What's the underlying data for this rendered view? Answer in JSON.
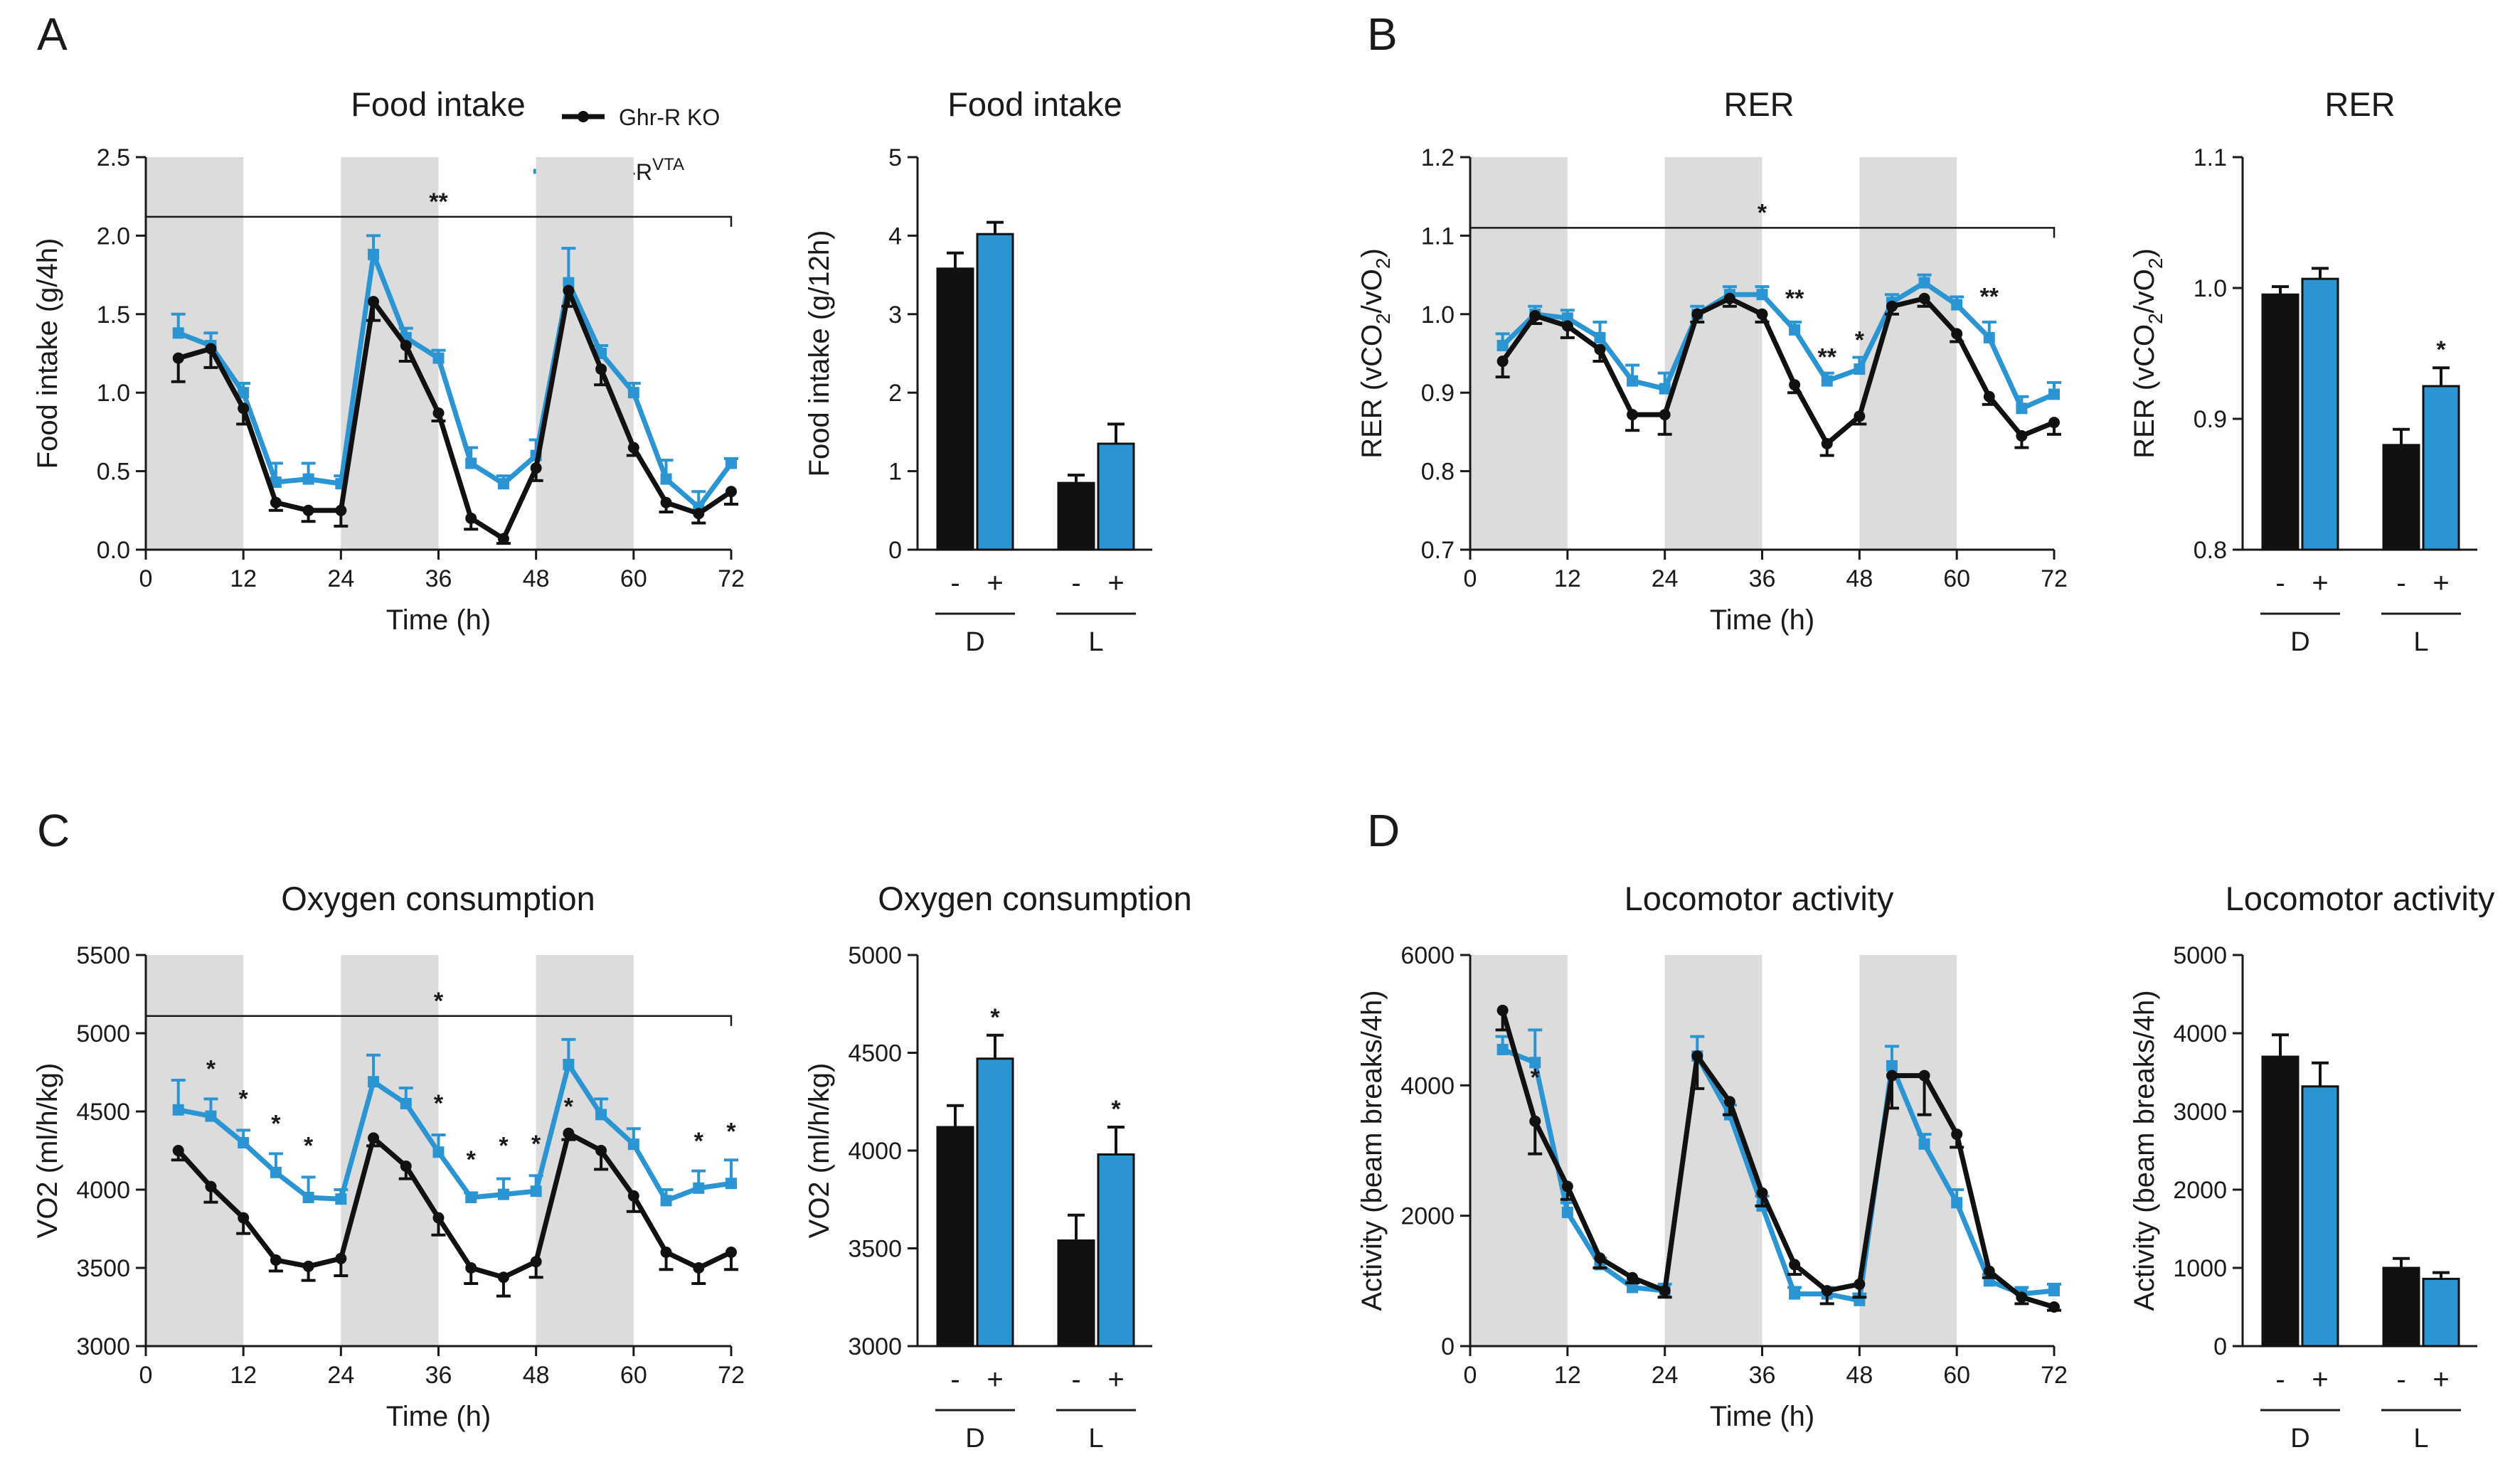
{
  "figure": {
    "panel_labels": [
      "A",
      "B",
      "C",
      "D"
    ]
  },
  "legend": {
    "ko": {
      "label": "Ghr-R KO",
      "color": "#111111"
    },
    "vta": {
      "label": "Ghr-R",
      "sup": "VTA",
      "color": "#2b95d3"
    }
  },
  "colors": {
    "ko": "#111111",
    "vta": "#2b95d3",
    "dark_phase_shading": "#dcdcdc"
  },
  "chart_data": [
    {
      "id": "A-time",
      "type": "line",
      "title": "Food intake",
      "xlabel": "Time (h)",
      "ylabel": "Food intake (g/4h)",
      "xlim": [
        0,
        72
      ],
      "ylim": [
        0,
        2.5
      ],
      "xticks": [
        0,
        12,
        24,
        36,
        48,
        60,
        72
      ],
      "yticks": [
        0,
        0.5,
        1.0,
        1.5,
        2.0,
        2.5
      ],
      "ytick_labels": [
        "0.0",
        "0.5",
        "1.0",
        "1.5",
        "2.0",
        "2.5"
      ],
      "dark_phases": [
        [
          0,
          12
        ],
        [
          24,
          36
        ],
        [
          48,
          60
        ]
      ],
      "bracket": {
        "from": 0,
        "to": 72,
        "y": 2.12,
        "label": "**"
      },
      "x": [
        4,
        8,
        12,
        16,
        20,
        24,
        28,
        32,
        36,
        40,
        44,
        48,
        52,
        56,
        60,
        64,
        68,
        72
      ],
      "series": [
        {
          "name": "Ghr-R KO",
          "key": "ko",
          "values": [
            1.22,
            1.28,
            0.9,
            0.3,
            0.25,
            0.25,
            1.58,
            1.3,
            0.87,
            0.2,
            0.07,
            0.52,
            1.65,
            1.15,
            0.65,
            0.3,
            0.23,
            0.37
          ],
          "errors": [
            0.15,
            0.12,
            0.1,
            0.05,
            0.07,
            0.1,
            0.12,
            0.1,
            0.05,
            0.07,
            0.03,
            0.08,
            0.1,
            0.1,
            0.05,
            0.06,
            0.06,
            0.08
          ]
        },
        {
          "name": "Ghr-R VTA",
          "key": "vta",
          "values": [
            1.38,
            1.3,
            1.0,
            0.43,
            0.45,
            0.42,
            1.88,
            1.35,
            1.22,
            0.55,
            0.42,
            0.6,
            1.7,
            1.25,
            1.0,
            0.45,
            0.27,
            0.55
          ],
          "errors": [
            0.12,
            0.08,
            0.06,
            0.12,
            0.1,
            0.05,
            0.12,
            0.06,
            0.05,
            0.1,
            0.05,
            0.1,
            0.22,
            0.05,
            0.06,
            0.12,
            0.1,
            0.03
          ]
        }
      ],
      "stars": []
    },
    {
      "id": "A-bar",
      "type": "bar",
      "title": "Food intake",
      "ylabel": "Food intake (g/12h)",
      "ylim": [
        0,
        5
      ],
      "yticks": [
        0,
        1,
        2,
        3,
        4,
        5
      ],
      "ytick_labels": [
        "0",
        "1",
        "2",
        "3",
        "4",
        "5"
      ],
      "groups": [
        "D",
        "L"
      ],
      "bar_labels": [
        "-",
        "+"
      ],
      "values": [
        [
          3.58,
          4.02
        ],
        [
          0.85,
          1.35
        ]
      ],
      "errors": [
        [
          0.2,
          0.15
        ],
        [
          0.1,
          0.25
        ]
      ],
      "stars": []
    },
    {
      "id": "B-time",
      "type": "line",
      "title": "RER",
      "xlabel": "Time (h)",
      "ylabel": "RER (vCO2/vO2)",
      "ylabel_parts": {
        "a": "RER (vCO",
        "b": "2",
        "c": "/vO",
        "d": "2",
        "e": ")"
      },
      "xlim": [
        0,
        72
      ],
      "ylim": [
        0.7,
        1.2
      ],
      "xticks": [
        0,
        12,
        24,
        36,
        48,
        60,
        72
      ],
      "yticks": [
        0.7,
        0.8,
        0.9,
        1.0,
        1.1,
        1.2
      ],
      "ytick_labels": [
        "0.7",
        "0.8",
        "0.9",
        "1.0",
        "1.1",
        "1.2"
      ],
      "dark_phases": [
        [
          0,
          12
        ],
        [
          24,
          36
        ],
        [
          48,
          60
        ]
      ],
      "bracket": {
        "from": 0,
        "to": 72,
        "y": 1.11,
        "label": "*"
      },
      "x": [
        4,
        8,
        12,
        16,
        20,
        24,
        28,
        32,
        36,
        40,
        44,
        48,
        52,
        56,
        60,
        64,
        68,
        72
      ],
      "series": [
        {
          "name": "Ghr-R KO",
          "key": "ko",
          "values": [
            0.94,
            0.998,
            0.985,
            0.955,
            0.872,
            0.872,
            1.0,
            1.02,
            1.0,
            0.91,
            0.835,
            0.87,
            1.01,
            1.02,
            0.975,
            0.895,
            0.845,
            0.862
          ],
          "errors": [
            0.02,
            0.01,
            0.015,
            0.015,
            0.02,
            0.025,
            0.01,
            0.01,
            0.01,
            0.01,
            0.015,
            0.01,
            0.01,
            0.01,
            0.01,
            0.01,
            0.015,
            0.015
          ]
        },
        {
          "name": "Ghr-R VTA",
          "key": "vta",
          "values": [
            0.96,
            1.0,
            0.995,
            0.97,
            0.915,
            0.905,
            1.0,
            1.025,
            1.025,
            0.98,
            0.915,
            0.93,
            1.015,
            1.04,
            1.012,
            0.97,
            0.88,
            0.898
          ],
          "errors": [
            0.015,
            0.01,
            0.01,
            0.02,
            0.02,
            0.02,
            0.01,
            0.01,
            0.01,
            0.01,
            0.01,
            0.015,
            0.01,
            0.01,
            0.01,
            0.02,
            0.015,
            0.015
          ]
        }
      ],
      "stars": [
        {
          "x": 40,
          "y": 1.01,
          "label": "**"
        },
        {
          "x": 44,
          "y": 0.935,
          "label": "**"
        },
        {
          "x": 48,
          "y": 0.957,
          "label": "*"
        },
        {
          "x": 64,
          "y": 1.012,
          "label": "**"
        }
      ]
    },
    {
      "id": "B-bar",
      "type": "bar",
      "title": "RER",
      "ylabel": "RER (vCO2/vO2)",
      "ylabel_parts": {
        "a": "RER (vCO",
        "b": "2",
        "c": "/vO",
        "d": "2",
        "e": ")"
      },
      "ylim": [
        0.8,
        1.1
      ],
      "yticks": [
        0.8,
        0.9,
        1.0,
        1.1
      ],
      "ytick_labels": [
        "0.8",
        "0.9",
        "1.0",
        "1.1"
      ],
      "groups": [
        "D",
        "L"
      ],
      "bar_labels": [
        "-",
        "+"
      ],
      "values": [
        [
          0.995,
          1.007
        ],
        [
          0.88,
          0.925
        ]
      ],
      "errors": [
        [
          0.006,
          0.008
        ],
        [
          0.012,
          0.014
        ]
      ],
      "stars": [
        {
          "group": 1,
          "bar": 1,
          "label": "*"
        }
      ]
    },
    {
      "id": "C-time",
      "type": "line",
      "title": "Oxygen consumption",
      "xlabel": "Time (h)",
      "ylabel": "VO2 (ml/h/kg)",
      "xlim": [
        0,
        72
      ],
      "ylim": [
        3000,
        5500
      ],
      "xticks": [
        0,
        12,
        24,
        36,
        48,
        60,
        72
      ],
      "yticks": [
        3000,
        3500,
        4000,
        4500,
        5000,
        5500
      ],
      "ytick_labels": [
        "3000",
        "3500",
        "4000",
        "4500",
        "5000",
        "5500"
      ],
      "dark_phases": [
        [
          0,
          12
        ],
        [
          24,
          36
        ],
        [
          48,
          60
        ]
      ],
      "bracket": {
        "from": 0,
        "to": 72,
        "y": 5110,
        "label": "*"
      },
      "x": [
        4,
        8,
        12,
        16,
        20,
        24,
        28,
        32,
        36,
        40,
        44,
        48,
        52,
        56,
        60,
        64,
        68,
        72
      ],
      "series": [
        {
          "name": "Ghr-R KO",
          "key": "ko",
          "values": [
            4250,
            4020,
            3820,
            3550,
            3510,
            3560,
            4330,
            4150,
            3820,
            3500,
            3440,
            3540,
            4360,
            4250,
            3960,
            3600,
            3500,
            3600
          ],
          "errors": [
            60,
            100,
            100,
            70,
            90,
            110,
            50,
            80,
            110,
            100,
            120,
            100,
            40,
            120,
            100,
            110,
            100,
            110
          ]
        },
        {
          "name": "Ghr-R VTA",
          "key": "vta",
          "values": [
            4510,
            4470,
            4300,
            4110,
            3950,
            3940,
            4690,
            4550,
            4240,
            3950,
            3970,
            3990,
            4800,
            4480,
            4290,
            3930,
            4010,
            4040
          ],
          "errors": [
            190,
            110,
            80,
            120,
            130,
            60,
            170,
            100,
            110,
            30,
            100,
            100,
            160,
            100,
            100,
            70,
            110,
            150
          ]
        }
      ],
      "stars": [
        {
          "x": 8,
          "y": 4720,
          "label": "*"
        },
        {
          "x": 12,
          "y": 4530,
          "label": "*"
        },
        {
          "x": 16,
          "y": 4370,
          "label": "*"
        },
        {
          "x": 20,
          "y": 4230,
          "label": "*"
        },
        {
          "x": 36,
          "y": 4500,
          "label": "*"
        },
        {
          "x": 40,
          "y": 4140,
          "label": "*"
        },
        {
          "x": 44,
          "y": 4230,
          "label": "*"
        },
        {
          "x": 48,
          "y": 4240,
          "label": "*"
        },
        {
          "x": 52,
          "y": 4480,
          "label": "*"
        },
        {
          "x": 68,
          "y": 4260,
          "label": "*"
        },
        {
          "x": 72,
          "y": 4320,
          "label": "*"
        }
      ]
    },
    {
      "id": "C-bar",
      "type": "bar",
      "title": "Oxygen consumption",
      "ylabel": "VO2 (ml/h/kg)",
      "ylim": [
        3000,
        5000
      ],
      "yticks": [
        3000,
        3500,
        4000,
        4500,
        5000
      ],
      "ytick_labels": [
        "3000",
        "3500",
        "4000",
        "4500",
        "5000"
      ],
      "groups": [
        "D",
        "L"
      ],
      "bar_labels": [
        "-",
        "+"
      ],
      "values": [
        [
          4120,
          4470
        ],
        [
          3540,
          3980
        ]
      ],
      "errors": [
        [
          110,
          120
        ],
        [
          130,
          140
        ]
      ],
      "stars": [
        {
          "group": 0,
          "bar": 1,
          "label": "*"
        },
        {
          "group": 1,
          "bar": 1,
          "label": "*"
        }
      ]
    },
    {
      "id": "D-time",
      "type": "line",
      "title": "Locomotor activity",
      "xlabel": "Time (h)",
      "ylabel": "Activity (beam breaks/4h)",
      "xlim": [
        0,
        72
      ],
      "ylim": [
        0,
        6000
      ],
      "xticks": [
        0,
        12,
        24,
        36,
        48,
        60,
        72
      ],
      "yticks": [
        0,
        2000,
        4000,
        6000
      ],
      "ytick_labels": [
        "0",
        "2000",
        "4000",
        "6000"
      ],
      "dark_phases": [
        [
          0,
          12
        ],
        [
          24,
          36
        ],
        [
          48,
          60
        ]
      ],
      "bracket": null,
      "x": [
        4,
        8,
        12,
        16,
        20,
        24,
        28,
        32,
        36,
        40,
        44,
        48,
        52,
        56,
        60,
        64,
        68,
        72
      ],
      "series": [
        {
          "name": "Ghr-R KO",
          "key": "ko",
          "values": [
            5150,
            3450,
            2450,
            1350,
            1050,
            850,
            4450,
            3750,
            2350,
            1250,
            850,
            950,
            4150,
            4150,
            3250,
            1150,
            750,
            600
          ],
          "errors": [
            300,
            500,
            200,
            150,
            80,
            100,
            500,
            200,
            200,
            150,
            200,
            200,
            500,
            600,
            200,
            100,
            100,
            50
          ]
        },
        {
          "name": "Ghr-R VTA",
          "key": "vta",
          "values": [
            4550,
            4350,
            2050,
            1250,
            900,
            850,
            4450,
            3550,
            2150,
            800,
            800,
            700,
            4300,
            3100,
            2200,
            1000,
            800,
            850
          ],
          "errors": [
            200,
            500,
            150,
            100,
            100,
            100,
            300,
            150,
            150,
            100,
            100,
            100,
            300,
            150,
            200,
            100,
            100,
            100
          ]
        }
      ],
      "stars": [
        {
          "x": 8,
          "y": 4000,
          "label": "*"
        }
      ]
    },
    {
      "id": "D-bar",
      "type": "bar",
      "title": "Locomotor activity",
      "ylabel": "Activity (beam breaks/4h)",
      "ylim": [
        0,
        5000
      ],
      "yticks": [
        0,
        1000,
        2000,
        3000,
        4000,
        5000
      ],
      "ytick_labels": [
        "0",
        "1000",
        "2000",
        "3000",
        "4000",
        "5000"
      ],
      "groups": [
        "D",
        "L"
      ],
      "bar_labels": [
        "-",
        "+"
      ],
      "values": [
        [
          3700,
          3320
        ],
        [
          1000,
          860
        ]
      ],
      "errors": [
        [
          280,
          300
        ],
        [
          120,
          80
        ]
      ],
      "stars": []
    }
  ]
}
